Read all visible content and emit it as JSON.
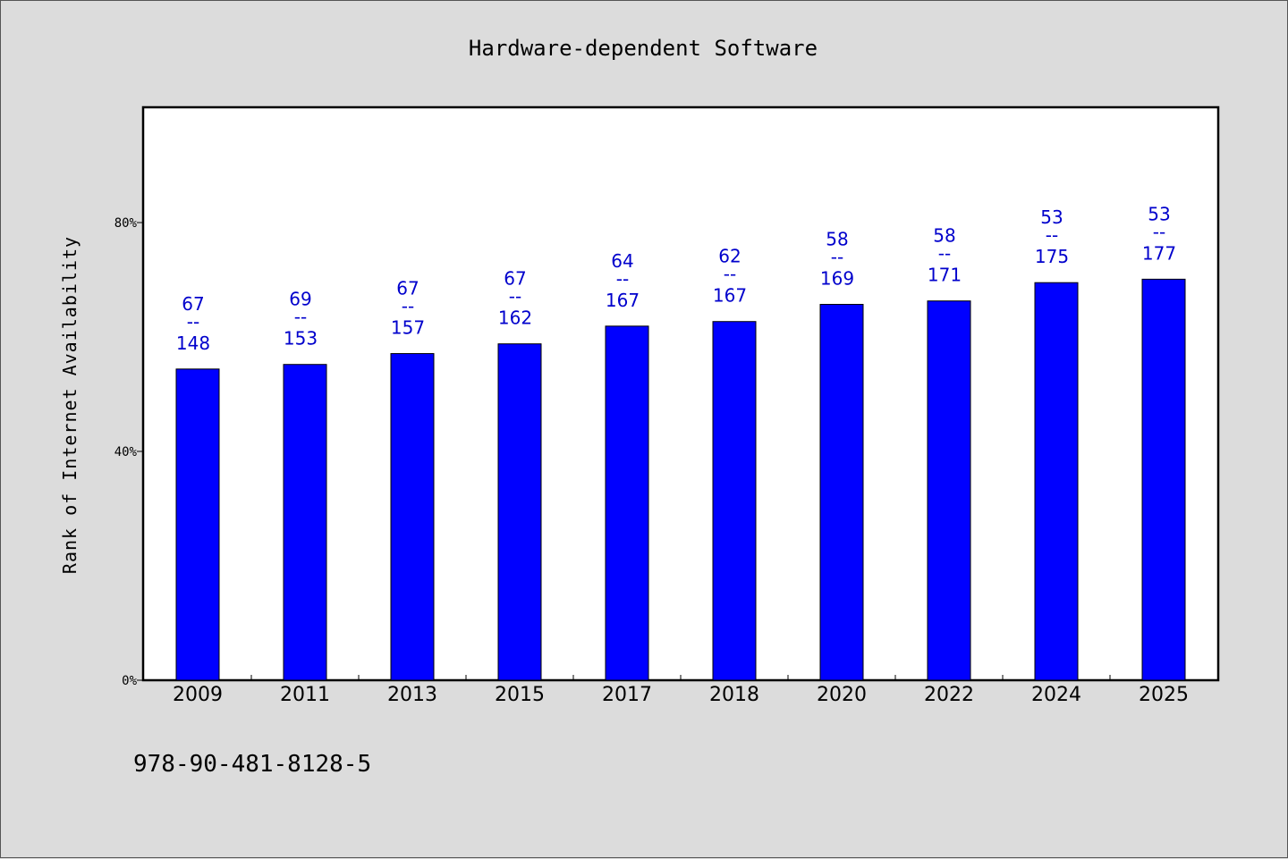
{
  "chart_data": {
    "type": "bar",
    "title": "Hardware-dependent Software",
    "xlabel": "",
    "ylabel": "Rank of Internet Availability",
    "ylim": [
      0,
      100
    ],
    "yticks": [
      {
        "value": 0,
        "label": "0%"
      },
      {
        "value": 40,
        "label": "40%"
      },
      {
        "value": 80,
        "label": "80%"
      }
    ],
    "categories": [
      "2009",
      "2011",
      "2013",
      "2015",
      "2017",
      "2018",
      "2020",
      "2022",
      "2024",
      "2025"
    ],
    "values": [
      54.4,
      55.2,
      57.1,
      58.8,
      61.9,
      62.7,
      65.7,
      66.3,
      69.5,
      70.1
    ],
    "data_labels": [
      {
        "top": "67",
        "sep": "--",
        "bottom": "148"
      },
      {
        "top": "69",
        "sep": "--",
        "bottom": "153"
      },
      {
        "top": "67",
        "sep": "--",
        "bottom": "157"
      },
      {
        "top": "67",
        "sep": "--",
        "bottom": "162"
      },
      {
        "top": "64",
        "sep": "--",
        "bottom": "167"
      },
      {
        "top": "62",
        "sep": "--",
        "bottom": "167"
      },
      {
        "top": "58",
        "sep": "--",
        "bottom": "169"
      },
      {
        "top": "58",
        "sep": "--",
        "bottom": "171"
      },
      {
        "top": "53",
        "sep": "--",
        "bottom": "175"
      },
      {
        "top": "53",
        "sep": "--",
        "bottom": "177"
      }
    ],
    "bar_color": "#0000ff",
    "label_color": "#0000cc",
    "grid": false,
    "legend": "none"
  },
  "footer_text": "978-90-481-8128-5"
}
